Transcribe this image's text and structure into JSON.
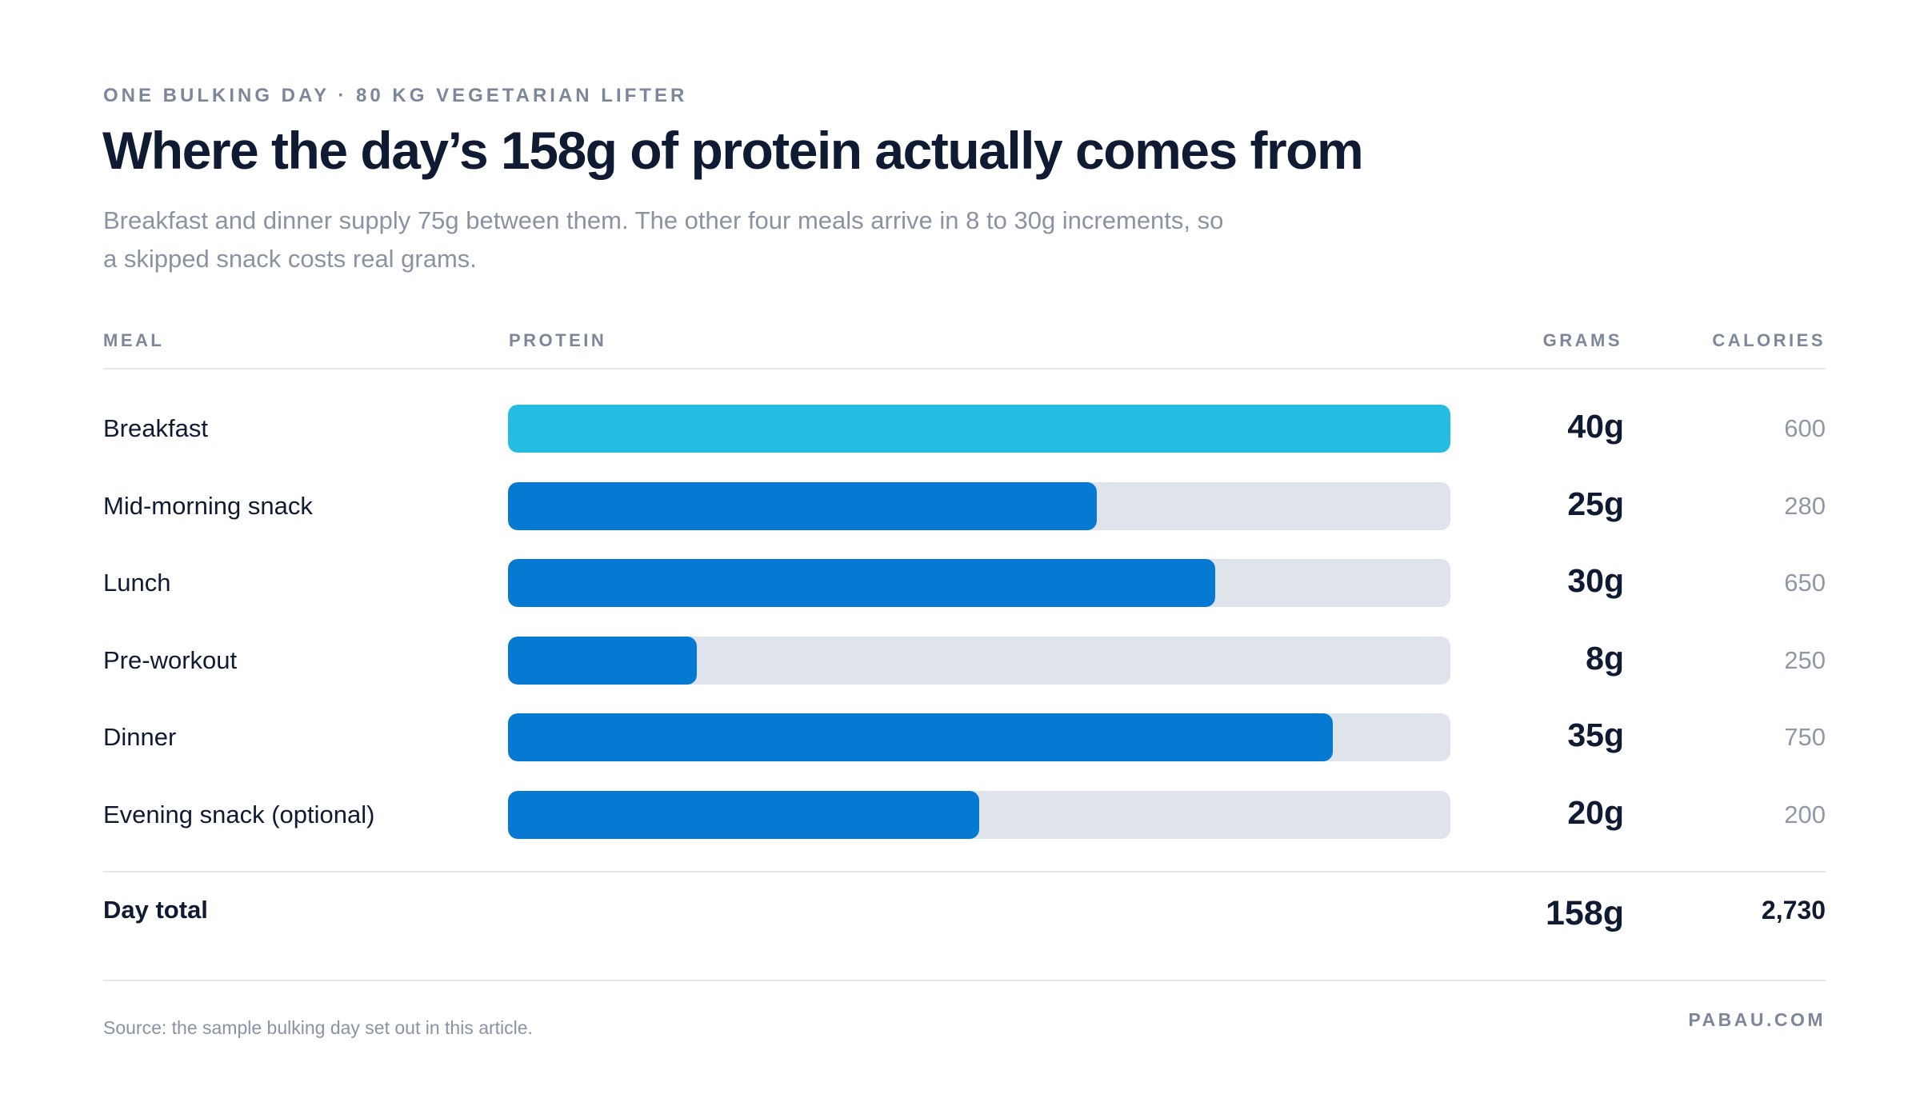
{
  "header": {
    "eyebrow": "ONE BULKING DAY · 80 KG VEGETARIAN LIFTER",
    "title": "Where the day’s 158g of protein actually comes from",
    "subtitle": "Breakfast and dinner supply 75g between them. The other four meals arrive in 8 to 30g increments, so a skipped snack costs real grams."
  },
  "columns": {
    "meal": "MEAL",
    "protein": "PROTEIN",
    "grams": "GRAMS",
    "calories": "CALORIES"
  },
  "colors": {
    "highlight": "#25bce2",
    "bar": "#0679d3",
    "track": "#dfe3ec"
  },
  "chart_data": {
    "type": "bar",
    "orientation": "horizontal",
    "categories": [
      "Breakfast",
      "Mid-morning snack",
      "Lunch",
      "Pre-workout",
      "Dinner",
      "Evening snack (optional)"
    ],
    "values": [
      40,
      25,
      30,
      8,
      35,
      20
    ],
    "value_labels": [
      "40g",
      "25g",
      "30g",
      "8g",
      "35g",
      "20g"
    ],
    "calories": [
      "600",
      "280",
      "650",
      "250",
      "750",
      "200"
    ],
    "highlight_index": 0,
    "xlim": [
      0,
      40
    ],
    "grid": false
  },
  "total": {
    "label": "Day total",
    "grams": "158g",
    "calories": "2,730"
  },
  "footer": {
    "source": "Source: the sample bulking day set out in this article.",
    "brand": "PABAU.COM"
  }
}
